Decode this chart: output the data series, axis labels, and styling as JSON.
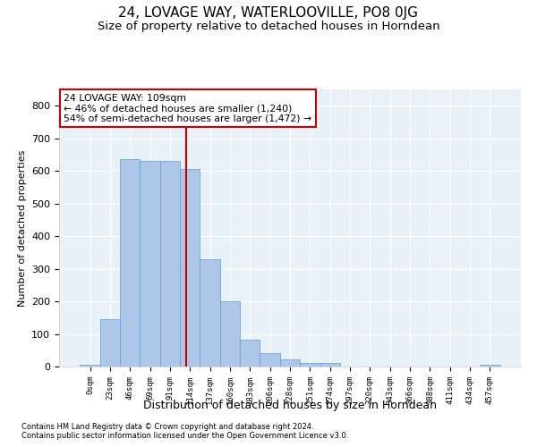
{
  "title": "24, LOVAGE WAY, WATERLOOVILLE, PO8 0JG",
  "subtitle": "Size of property relative to detached houses in Horndean",
  "xlabel": "Distribution of detached houses by size in Horndean",
  "ylabel": "Number of detached properties",
  "footer_line1": "Contains HM Land Registry data © Crown copyright and database right 2024.",
  "footer_line2": "Contains public sector information licensed under the Open Government Licence v3.0.",
  "bin_labels": [
    "0sqm",
    "23sqm",
    "46sqm",
    "69sqm",
    "91sqm",
    "114sqm",
    "137sqm",
    "160sqm",
    "183sqm",
    "206sqm",
    "228sqm",
    "251sqm",
    "274sqm",
    "297sqm",
    "320sqm",
    "343sqm",
    "366sqm",
    "388sqm",
    "411sqm",
    "434sqm",
    "457sqm"
  ],
  "bar_heights": [
    5,
    145,
    635,
    630,
    630,
    605,
    330,
    200,
    83,
    40,
    22,
    10,
    10,
    0,
    0,
    0,
    0,
    0,
    0,
    0,
    5
  ],
  "bar_color": "#aec6e8",
  "bar_edge_color": "#5a9fd4",
  "vline_x": 4.82,
  "vline_color": "#cc0000",
  "annotation_text": "24 LOVAGE WAY: 109sqm\n← 46% of detached houses are smaller (1,240)\n54% of semi-detached houses are larger (1,472) →",
  "annotation_box_color": "white",
  "annotation_box_edge_color": "#cc0000",
  "ylim": [
    0,
    850
  ],
  "yticks": [
    0,
    100,
    200,
    300,
    400,
    500,
    600,
    700,
    800
  ],
  "background_color": "#e8f0f8",
  "grid_color": "white",
  "title_fontsize": 11,
  "subtitle_fontsize": 9.5,
  "xlabel_fontsize": 9,
  "ylabel_fontsize": 8
}
